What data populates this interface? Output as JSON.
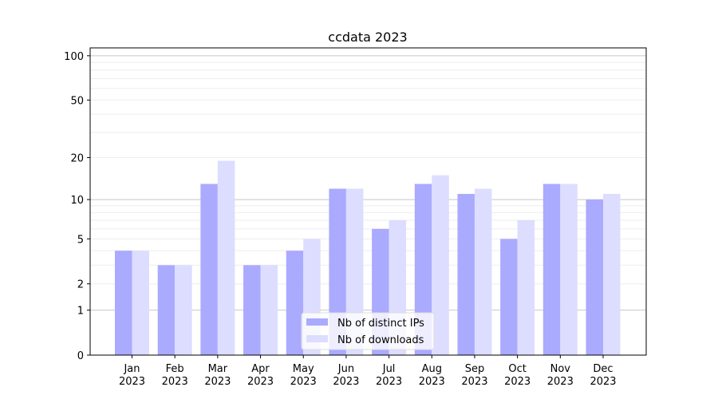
{
  "chart_data": {
    "type": "bar",
    "title": "ccdata 2023",
    "xlabel": "",
    "ylabel": "",
    "yscale": "log10(1+y)",
    "ylim": [
      0,
      113
    ],
    "yticks": [
      0,
      1,
      2,
      5,
      10,
      20,
      50,
      100
    ],
    "grid": true,
    "legend_placement": "bottom-center",
    "categories": [
      "Jan\n2023",
      "Feb\n2023",
      "Mar\n2023",
      "Apr\n2023",
      "May\n2023",
      "Jun\n2023",
      "Jul\n2023",
      "Aug\n2023",
      "Sep\n2023",
      "Oct\n2023",
      "Nov\n2023",
      "Dec\n2023"
    ],
    "series": [
      {
        "name": "Nb of distinct IPs",
        "color": "#aaaaff",
        "values": [
          4,
          3,
          13,
          3,
          4,
          12,
          6,
          13,
          11,
          5,
          13,
          10
        ]
      },
      {
        "name": "Nb of downloads",
        "color": "#ddddff",
        "values": [
          4,
          3,
          19,
          3,
          5,
          12,
          7,
          15,
          12,
          7,
          13,
          11
        ]
      }
    ]
  }
}
